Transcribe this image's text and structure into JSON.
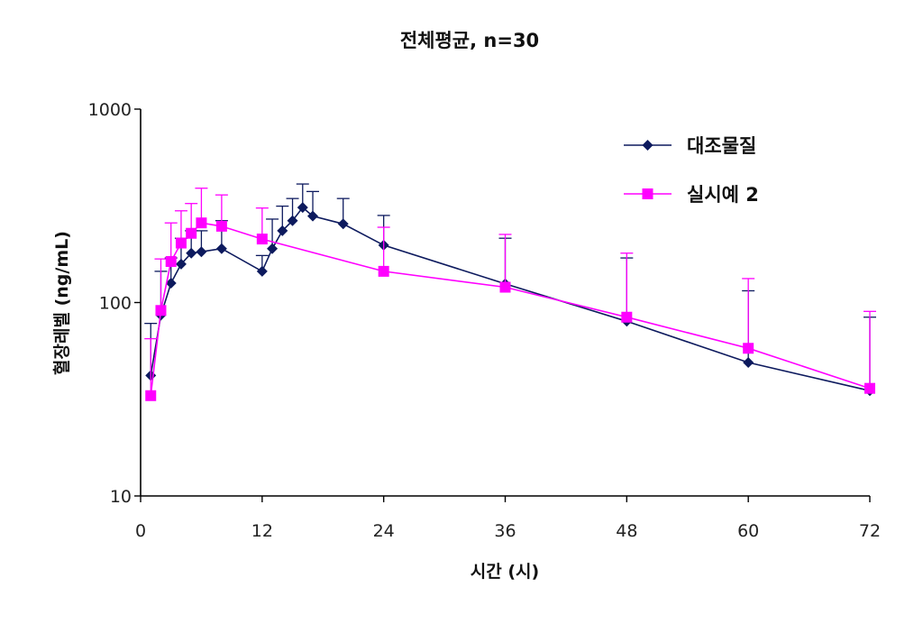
{
  "chart_data": {
    "type": "line",
    "title": "전체평균, n=30",
    "xlabel": "시간 (시)",
    "ylabel": "혈장레벨 (ng/mL)",
    "yscale": "log",
    "xlim": [
      0,
      72
    ],
    "ylim": [
      10,
      1000
    ],
    "xticks": [
      0,
      12,
      24,
      36,
      48,
      60,
      72
    ],
    "yticks": [
      10,
      100,
      1000
    ],
    "grid": false,
    "legend_position": "top-right",
    "series": [
      {
        "name": "대조물질",
        "color": "#0d1a5e",
        "marker": "diamond",
        "x": [
          1,
          2,
          3,
          4,
          5,
          6,
          8,
          12,
          13,
          14,
          15,
          16,
          17,
          20,
          24,
          36,
          48,
          60,
          72
        ],
        "y": [
          42,
          86,
          126,
          158,
          180,
          183,
          190,
          145,
          190,
          235,
          265,
          310,
          280,
          255,
          198,
          125,
          80,
          49,
          35
        ],
        "error_upper": [
          78,
          145,
          170,
          215,
          235,
          235,
          265,
          175,
          270,
          315,
          345,
          410,
          375,
          345,
          282,
          215,
          170,
          115,
          84
        ]
      },
      {
        "name": "실시예 2",
        "color": "#ff00ff",
        "marker": "square",
        "x": [
          1,
          2,
          3,
          4,
          5,
          6,
          8,
          12,
          24,
          36,
          48,
          60,
          72
        ],
        "y": [
          33,
          91,
          163,
          203,
          228,
          258,
          248,
          213,
          145,
          120,
          84,
          58,
          36
        ],
        "error_upper": [
          65,
          168,
          258,
          298,
          325,
          390,
          360,
          308,
          245,
          225,
          180,
          133,
          90
        ]
      }
    ]
  }
}
